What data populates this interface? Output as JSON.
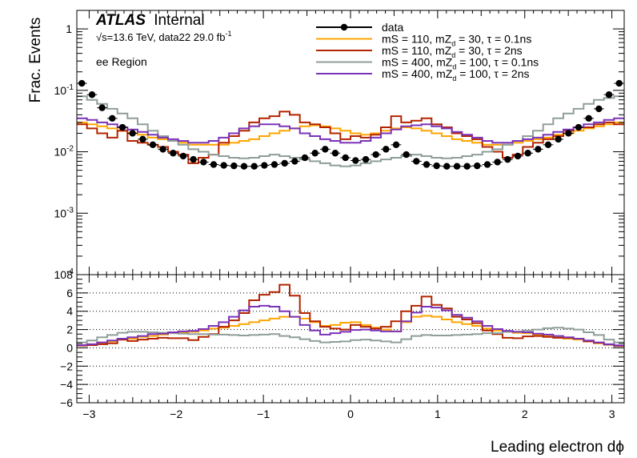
{
  "chart_data": [
    {
      "type": "line",
      "panel": "main",
      "experiment": "ATLAS",
      "status": "Internal",
      "energy_text": "√s=13.6 TeV, data22 29.0 fb",
      "lumi_exp": "-1",
      "region": "ee Region",
      "ylabel": "Frac. Events",
      "xlabel": "Leading electron dϕ",
      "xlim": [
        -3.14159,
        3.14159
      ],
      "ylim": [
        0.0001,
        2
      ],
      "yscale": "log",
      "x_ticks": [
        "−3",
        "−2",
        "−1",
        "0",
        "1",
        "2",
        "3"
      ],
      "y_ticks": [
        {
          "base": "1",
          "exp": ""
        },
        {
          "base": "10",
          "exp": "-1"
        },
        {
          "base": "10",
          "exp": "-2"
        },
        {
          "base": "10",
          "exp": "-3"
        },
        {
          "base": "10",
          "exp": "-4"
        }
      ],
      "legend_position": "top-right",
      "legend": [
        {
          "label": "data",
          "color": "#000000",
          "kind": "marker"
        },
        {
          "label": "mS = 110, mZ_d = 30, τ = 0.1ns",
          "color": "#ffa500",
          "kind": "line"
        },
        {
          "label": "mS = 110, mZ_d = 30, τ = 2ns",
          "color": "#b32400",
          "kind": "line"
        },
        {
          "label": "mS = 400, mZ_d = 100, τ = 0.1ns",
          "color": "#8f9e99",
          "kind": "line"
        },
        {
          "label": "mS = 400, mZ_d = 100, τ = 2ns",
          "color": "#7a33b8",
          "kind": "line"
        }
      ],
      "x": [
        -3.084,
        -2.967,
        -2.851,
        -2.735,
        -2.618,
        -2.502,
        -2.385,
        -2.269,
        -2.153,
        -2.036,
        -1.92,
        -1.804,
        -1.687,
        -1.571,
        -1.454,
        -1.338,
        -1.222,
        -1.105,
        -0.989,
        -0.873,
        -0.756,
        -0.64,
        -0.524,
        -0.407,
        -0.291,
        -0.175,
        -0.058,
        0.058,
        0.175,
        0.291,
        0.407,
        0.524,
        0.64,
        0.756,
        0.873,
        0.989,
        1.105,
        1.222,
        1.338,
        1.454,
        1.571,
        1.687,
        1.804,
        1.92,
        2.036,
        2.153,
        2.269,
        2.385,
        2.502,
        2.618,
        2.735,
        2.851,
        2.967,
        3.084
      ],
      "series": [
        {
          "name": "data",
          "color": "#000000",
          "values": [
            0.13,
            0.085,
            0.052,
            0.035,
            0.025,
            0.02,
            0.016,
            0.013,
            0.011,
            0.0095,
            0.0085,
            0.0075,
            0.0068,
            0.0062,
            0.006,
            0.0059,
            0.0058,
            0.0058,
            0.006,
            0.0062,
            0.0065,
            0.007,
            0.008,
            0.0095,
            0.011,
            0.0095,
            0.008,
            0.0072,
            0.0075,
            0.009,
            0.011,
            0.013,
            0.009,
            0.007,
            0.0062,
            0.0059,
            0.0058,
            0.0058,
            0.0058,
            0.0059,
            0.0062,
            0.0068,
            0.0075,
            0.0085,
            0.0095,
            0.011,
            0.013,
            0.016,
            0.02,
            0.025,
            0.035,
            0.05,
            0.085,
            0.13
          ]
        },
        {
          "name": "mS = 110, mZ_d = 30, τ = 0.1ns",
          "color": "#ffa500",
          "values": [
            0.03,
            0.028,
            0.026,
            0.024,
            0.022,
            0.02,
            0.019,
            0.017,
            0.016,
            0.015,
            0.014,
            0.013,
            0.013,
            0.013,
            0.013,
            0.014,
            0.015,
            0.016,
            0.018,
            0.02,
            0.022,
            0.024,
            0.026,
            0.027,
            0.026,
            0.024,
            0.022,
            0.02,
            0.019,
            0.02,
            0.022,
            0.024,
            0.025,
            0.024,
            0.022,
            0.02,
            0.018,
            0.016,
            0.015,
            0.014,
            0.013,
            0.013,
            0.013,
            0.014,
            0.015,
            0.016,
            0.017,
            0.019,
            0.02,
            0.022,
            0.024,
            0.026,
            0.028,
            0.03
          ]
        },
        {
          "name": "mS = 110, mZ_d = 30, τ = 2ns",
          "color": "#b32400",
          "values": [
            0.028,
            0.024,
            0.02,
            0.017,
            0.022,
            0.015,
            0.014,
            0.013,
            0.012,
            0.01,
            0.009,
            0.0065,
            0.008,
            0.009,
            0.014,
            0.018,
            0.022,
            0.03,
            0.035,
            0.038,
            0.045,
            0.04,
            0.03,
            0.028,
            0.025,
            0.02,
            0.016,
            0.018,
            0.017,
            0.019,
            0.025,
            0.038,
            0.03,
            0.032,
            0.035,
            0.028,
            0.025,
            0.02,
            0.018,
            0.016,
            0.012,
            0.01,
            0.008,
            0.009,
            0.012,
            0.014,
            0.016,
            0.018,
            0.022,
            0.025,
            0.025,
            0.028,
            0.03,
            0.028
          ]
        },
        {
          "name": "mS = 400, mZ_d = 100, τ = 0.1ns",
          "color": "#8f9e99",
          "values": [
            0.08,
            0.07,
            0.06,
            0.05,
            0.042,
            0.035,
            0.028,
            0.022,
            0.018,
            0.015,
            0.013,
            0.011,
            0.01,
            0.009,
            0.0085,
            0.008,
            0.0078,
            0.008,
            0.0085,
            0.009,
            0.0085,
            0.008,
            0.0075,
            0.007,
            0.0065,
            0.006,
            0.0058,
            0.006,
            0.0065,
            0.007,
            0.0075,
            0.008,
            0.0085,
            0.009,
            0.0085,
            0.008,
            0.0078,
            0.008,
            0.0085,
            0.009,
            0.01,
            0.011,
            0.013,
            0.015,
            0.018,
            0.022,
            0.028,
            0.035,
            0.042,
            0.05,
            0.06,
            0.07,
            0.075,
            0.08
          ]
        },
        {
          "name": "mS = 400, mZ_d = 100, τ = 2ns",
          "color": "#7a33b8",
          "values": [
            0.035,
            0.033,
            0.03,
            0.028,
            0.025,
            0.023,
            0.021,
            0.019,
            0.017,
            0.016,
            0.015,
            0.014,
            0.014,
            0.015,
            0.017,
            0.02,
            0.024,
            0.026,
            0.028,
            0.028,
            0.026,
            0.024,
            0.02,
            0.018,
            0.016,
            0.015,
            0.014,
            0.014,
            0.015,
            0.017,
            0.02,
            0.023,
            0.026,
            0.027,
            0.028,
            0.026,
            0.024,
            0.021,
            0.019,
            0.017,
            0.015,
            0.014,
            0.014,
            0.015,
            0.016,
            0.017,
            0.019,
            0.021,
            0.023,
            0.025,
            0.028,
            0.03,
            0.033,
            0.035
          ]
        }
      ]
    },
    {
      "type": "line",
      "panel": "ratio",
      "xlabel": "Leading electron dϕ",
      "ylabel": "",
      "xlim": [
        -3.14159,
        3.14159
      ],
      "ylim": [
        -6,
        8
      ],
      "y_ticks": [
        "8",
        "6",
        "4",
        "2",
        "0",
        "−2",
        "−4",
        "−6"
      ],
      "y_tick_values": [
        8,
        6,
        4,
        2,
        0,
        -2,
        -4,
        -6
      ],
      "x_ticks": [
        "−3",
        "−2",
        "−1",
        "0",
        "1",
        "2",
        "3"
      ],
      "grid": "horizontal dotted",
      "series": [
        {
          "name": "mS = 110, mZ_d = 30, τ = 0.1ns",
          "color": "#ffa500",
          "values": [
            0.3,
            0.35,
            0.5,
            0.7,
            0.9,
            1.0,
            1.2,
            1.3,
            1.45,
            1.6,
            1.65,
            1.75,
            1.9,
            2.1,
            2.2,
            2.4,
            2.6,
            2.8,
            3.0,
            3.2,
            3.4,
            3.4,
            3.2,
            2.8,
            2.4,
            2.5,
            2.75,
            2.8,
            2.5,
            2.2,
            2.0,
            1.8,
            2.8,
            3.4,
            3.5,
            3.4,
            3.1,
            2.8,
            2.6,
            2.4,
            2.1,
            1.9,
            1.75,
            1.65,
            1.6,
            1.45,
            1.3,
            1.2,
            1.0,
            0.9,
            0.7,
            0.5,
            0.35,
            0.25
          ]
        },
        {
          "name": "mS = 110, mZ_d = 30, τ = 2ns",
          "color": "#b32400",
          "values": [
            0.25,
            0.3,
            0.4,
            0.5,
            0.9,
            0.75,
            0.9,
            1.0,
            1.1,
            1.05,
            1.05,
            0.85,
            1.2,
            1.5,
            2.3,
            3.0,
            3.8,
            5.2,
            5.8,
            6.1,
            6.9,
            5.7,
            3.8,
            2.9,
            2.3,
            2.1,
            2.0,
            2.5,
            2.3,
            2.1,
            2.3,
            2.9,
            4.0,
            4.6,
            5.6,
            4.7,
            4.3,
            3.4,
            3.1,
            2.7,
            1.9,
            1.5,
            1.1,
            1.05,
            1.25,
            1.3,
            1.2,
            1.1,
            1.1,
            1.0,
            0.7,
            0.55,
            0.35,
            0.2
          ]
        },
        {
          "name": "mS = 400, mZ_d = 100, τ = 0.1ns",
          "color": "#8f9e99",
          "values": [
            0.6,
            0.8,
            1.15,
            1.4,
            1.65,
            1.75,
            1.75,
            1.7,
            1.65,
            1.6,
            1.55,
            1.5,
            1.5,
            1.45,
            1.45,
            1.4,
            1.35,
            1.4,
            1.45,
            1.5,
            1.3,
            1.15,
            0.95,
            0.75,
            0.6,
            0.65,
            0.7,
            0.85,
            0.9,
            0.8,
            0.7,
            0.6,
            0.95,
            1.3,
            1.4,
            1.35,
            1.35,
            1.4,
            1.45,
            1.5,
            1.6,
            1.6,
            1.75,
            1.75,
            1.9,
            2.0,
            2.15,
            2.2,
            2.1,
            2.0,
            1.7,
            1.4,
            0.9,
            0.6
          ]
        },
        {
          "name": "mS = 400, mZ_d = 100, τ = 2ns",
          "color": "#7a33b8",
          "values": [
            0.3,
            0.4,
            0.6,
            0.8,
            1.0,
            1.15,
            1.3,
            1.5,
            1.55,
            1.7,
            1.8,
            1.85,
            2.05,
            2.4,
            2.8,
            3.4,
            4.1,
            4.5,
            4.6,
            4.5,
            4.0,
            3.4,
            2.5,
            1.9,
            1.45,
            1.6,
            1.75,
            1.95,
            2.0,
            1.9,
            1.8,
            1.8,
            2.9,
            3.85,
            4.5,
            4.4,
            4.1,
            3.6,
            3.3,
            2.9,
            2.4,
            2.05,
            1.85,
            1.75,
            1.7,
            1.55,
            1.45,
            1.3,
            1.15,
            1.0,
            0.8,
            0.6,
            0.4,
            0.27
          ]
        }
      ]
    }
  ]
}
